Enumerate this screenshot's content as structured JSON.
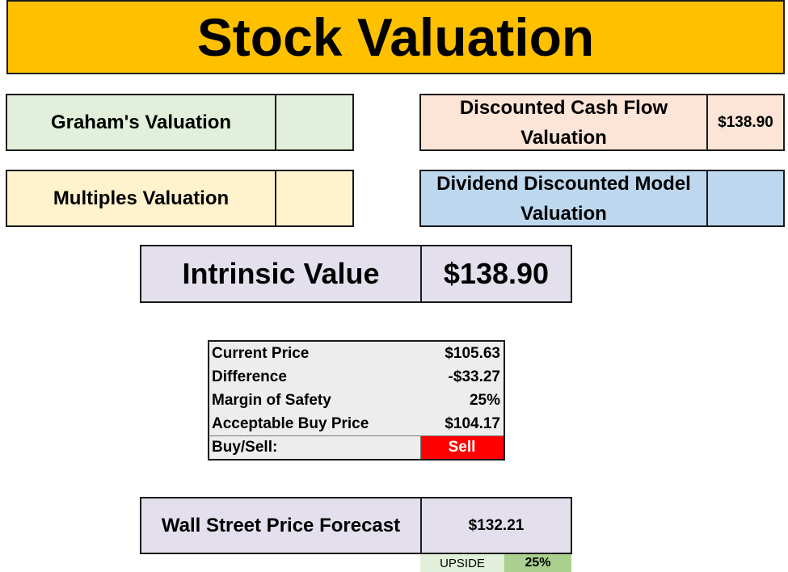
{
  "title": "Stock Valuation",
  "grahams": {
    "label": "Graham's Valuation",
    "value": ""
  },
  "dcf": {
    "label": "Discounted Cash Flow Valuation",
    "value": "$138.90"
  },
  "multiples": {
    "label": "Multiples Valuation",
    "value": ""
  },
  "ddm": {
    "label": "Dividend Discounted Model Valuation",
    "value": ""
  },
  "intrinsic": {
    "label": "Intrinsic Value",
    "value": "$138.90"
  },
  "summary": {
    "rows": [
      {
        "label": "Current Price",
        "value": "$105.63"
      },
      {
        "label": "Difference",
        "value": "-$33.27"
      },
      {
        "label": "Margin of Safety",
        "value": "25%"
      },
      {
        "label": "Acceptable Buy Price",
        "value": "$104.17"
      }
    ],
    "buysell_label": "Buy/Sell:",
    "buysell_value": "Sell"
  },
  "forecast": {
    "label": "Wall Street Price Forecast",
    "value": "$132.21"
  },
  "upside": {
    "label": "UPSIDE",
    "value": "25%"
  },
  "colors": {
    "title_bg": "#ffc000",
    "green": "#e2efda",
    "peach": "#fce4d6",
    "yellow": "#fff2cc",
    "blue": "#bdd7ee",
    "purple": "#e4dfec",
    "sell": "#ff0000",
    "upside": "#a9d08e"
  }
}
